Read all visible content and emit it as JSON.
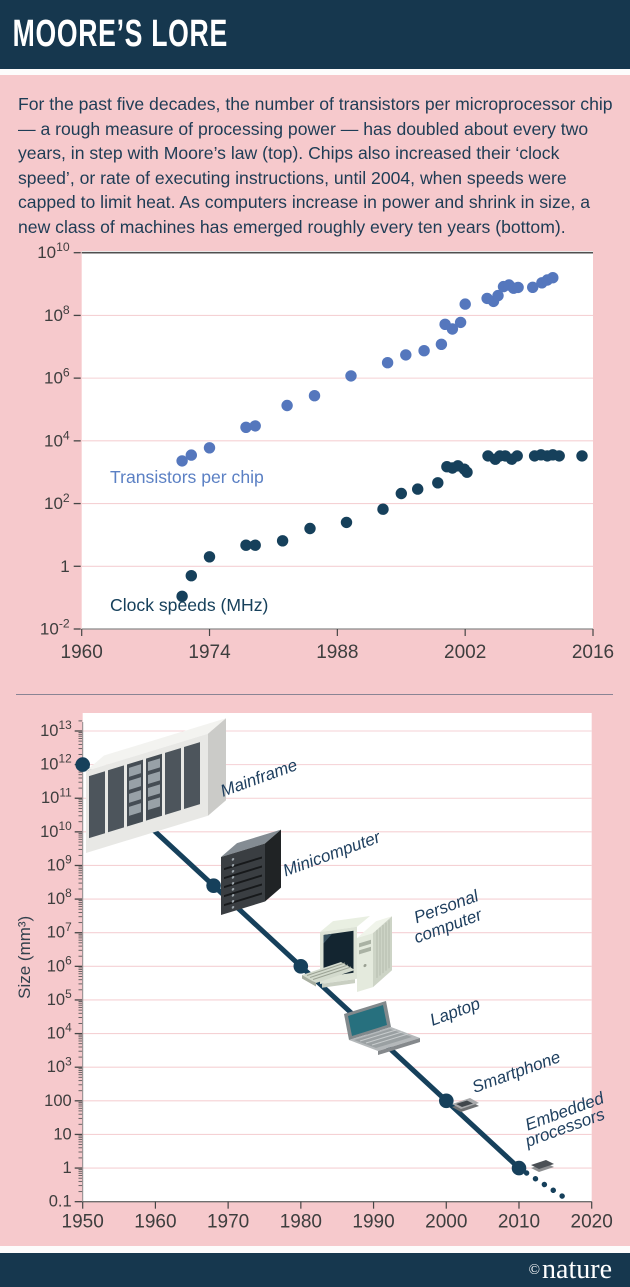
{
  "header": {
    "title": "MOORE’S LORE"
  },
  "intro": "For the past five decades, the number of transistors per microprocessor chip — a rough measure of processing power — has doubled about every two years, in step with Moore’s law (top). Chips also increased their ‘clock speed’, or rate of executing instructions, until 2004, when speeds were capped to limit heat. As computers increase in power and shrink in size, a new class of machines has emerged roughly every ten years (bottom).",
  "footer": {
    "copyright": "©",
    "brand": "nature"
  },
  "colors": {
    "header_bar": "#16374e",
    "background": "#f6c9cc",
    "text_ink": "#1e3c55",
    "transistor_blue": "#5577bd",
    "transistor_label_blue": "#5b80c4",
    "clock_navy": "#16405b",
    "gridline_pink": "#f5d1d4",
    "divider_gray": "#8a8494",
    "annotation_navy": "#1d3e5e"
  },
  "chart_data": [
    {
      "type": "scatter",
      "y_scale": "log",
      "xlim": [
        1960,
        2016
      ],
      "ylim": [
        0.01,
        10000000000
      ],
      "grid": "horizontal-only",
      "x_ticks": [
        1960,
        1974,
        1988,
        2002,
        2016
      ],
      "y_ticks": [
        {
          "v": 10000000000,
          "label": "10^10"
        },
        {
          "v": 100000000,
          "label": "10^8"
        },
        {
          "v": 1000000,
          "label": "10^6"
        },
        {
          "v": 10000,
          "label": "10^4"
        },
        {
          "v": 100,
          "label": "10^2"
        },
        {
          "v": 1,
          "label": "1"
        },
        {
          "v": 0.01,
          "label": "10^-2"
        }
      ],
      "series": [
        {
          "name": "Transistors per chip",
          "color": "#5577bd",
          "points": [
            [
              1971,
              2300
            ],
            [
              1972,
              3500
            ],
            [
              1974,
              6000
            ],
            [
              1978,
              27000
            ],
            [
              1979,
              30000
            ],
            [
              1982.5,
              134000
            ],
            [
              1985.5,
              275000
            ],
            [
              1989.5,
              1180000
            ],
            [
              1993.5,
              3100000
            ],
            [
              1995.5,
              5500000
            ],
            [
              1997.5,
              7500000
            ],
            [
              1999.4,
              12000000
            ],
            [
              1999.8,
              52000000
            ],
            [
              2000.6,
              37000000
            ],
            [
              2001.5,
              60000000
            ],
            [
              2002,
              230000000
            ],
            [
              2004.4,
              350000000
            ],
            [
              2005.1,
              280000000
            ],
            [
              2005.6,
              430000000
            ],
            [
              2006.2,
              830000000
            ],
            [
              2006.8,
              930000000
            ],
            [
              2007.3,
              740000000
            ],
            [
              2007.8,
              780000000
            ],
            [
              2009.4,
              790000000
            ],
            [
              2010.4,
              1100000000
            ],
            [
              2011,
              1350000000
            ],
            [
              2011.6,
              1600000000
            ]
          ]
        },
        {
          "name": "Clock speeds (MHz)",
          "color": "#16405b",
          "points": [
            [
              1971,
              0.11
            ],
            [
              1972,
              0.5
            ],
            [
              1974,
              2
            ],
            [
              1978,
              4.7
            ],
            [
              1979,
              4.7
            ],
            [
              1982,
              6.5
            ],
            [
              1985,
              16
            ],
            [
              1989,
              25
            ],
            [
              1993,
              66
            ],
            [
              1995,
              210
            ],
            [
              1996.8,
              290
            ],
            [
              1999,
              460
            ],
            [
              2000,
              1500
            ],
            [
              2000.6,
              1360
            ],
            [
              2001.2,
              1600
            ],
            [
              2001.9,
              1250
            ],
            [
              2002.2,
              1000
            ],
            [
              2004.5,
              3300
            ],
            [
              2005.3,
              2600
            ],
            [
              2005.8,
              3300
            ],
            [
              2006.4,
              3300
            ],
            [
              2007.1,
              2600
            ],
            [
              2007.7,
              3300
            ],
            [
              2009.6,
              3300
            ],
            [
              2010.3,
              3600
            ],
            [
              2011,
              3300
            ],
            [
              2011.6,
              3600
            ],
            [
              2012.3,
              3300
            ],
            [
              2014.8,
              3300
            ]
          ]
        }
      ],
      "series_labels": [
        {
          "text": "Transistors per chip",
          "year": 1963.1,
          "value": 450,
          "color": "#5b80c4"
        },
        {
          "text": "Clock speeds (MHz)",
          "year": 1963.1,
          "value": 0.037,
          "color": "#16405b"
        }
      ]
    },
    {
      "type": "line",
      "y_scale": "log",
      "ylabel": "Size (mm³)",
      "xlim": [
        1950,
        2020
      ],
      "ylim": [
        0.1,
        10000000000000
      ],
      "x_ticks": [
        1950,
        1960,
        1970,
        1980,
        1990,
        2000,
        2010,
        2020
      ],
      "y_ticks": [
        {
          "v": 10000000000000,
          "label": "10^13"
        },
        {
          "v": 1000000000000,
          "label": "10^12"
        },
        {
          "v": 100000000000,
          "label": "10^11"
        },
        {
          "v": 10000000000,
          "label": "10^10"
        },
        {
          "v": 1000000000,
          "label": "10^9"
        },
        {
          "v": 100000000,
          "label": "10^8"
        },
        {
          "v": 10000000,
          "label": "10^7"
        },
        {
          "v": 1000000,
          "label": "10^6"
        },
        {
          "v": 100000,
          "label": "10^5"
        },
        {
          "v": 10000,
          "label": "10^4"
        },
        {
          "v": 1000,
          "label": "10^3"
        },
        {
          "v": 100,
          "label": "100"
        },
        {
          "v": 10,
          "label": "10"
        },
        {
          "v": 1,
          "label": "1"
        },
        {
          "v": 0.1,
          "label": "0.1"
        }
      ],
      "line": {
        "solid": [
          [
            1950,
            1000000000000
          ],
          [
            2010,
            1
          ]
        ],
        "dotted_end": [
          2016.2,
          0.135
        ],
        "color": "#16405b"
      },
      "markers": [
        {
          "year": 1950,
          "value": 1000000000000,
          "label": "Mainframe"
        },
        {
          "year": 1968,
          "value": 250000000,
          "label": "Minicomputer"
        },
        {
          "year": 1980,
          "value": 1000000,
          "label": "Personal computer"
        },
        {
          "year": 1990,
          "value": 10000,
          "label": "Laptop"
        },
        {
          "year": 2000,
          "value": 100,
          "label": "Smartphone"
        },
        {
          "year": 2010,
          "value": 1,
          "label": "Embedded processors"
        }
      ],
      "annotations": [
        {
          "text": "Mainframe",
          "year": 1969.3,
          "value": 110000000000,
          "rotate": -20
        },
        {
          "text": "Minicomputer",
          "year": 1977.9,
          "value": 470000000,
          "rotate": -20
        },
        {
          "text": "Personal",
          "year": 1995.9,
          "value": 19000000,
          "rotate": -20
        },
        {
          "text": "computer",
          "year": 1995.9,
          "value": 4800000,
          "rotate": -20
        },
        {
          "text": "Laptop",
          "year": 1998.1,
          "value": 17000,
          "rotate": -20
        },
        {
          "text": "Smartphone",
          "year": 2003.9,
          "value": 170,
          "rotate": -20
        },
        {
          "text": "Embedded",
          "year": 2011.2,
          "value": 13,
          "rotate": -20
        },
        {
          "text": "processors",
          "year": 2011.2,
          "value": 4.2,
          "rotate": -20
        }
      ]
    }
  ]
}
